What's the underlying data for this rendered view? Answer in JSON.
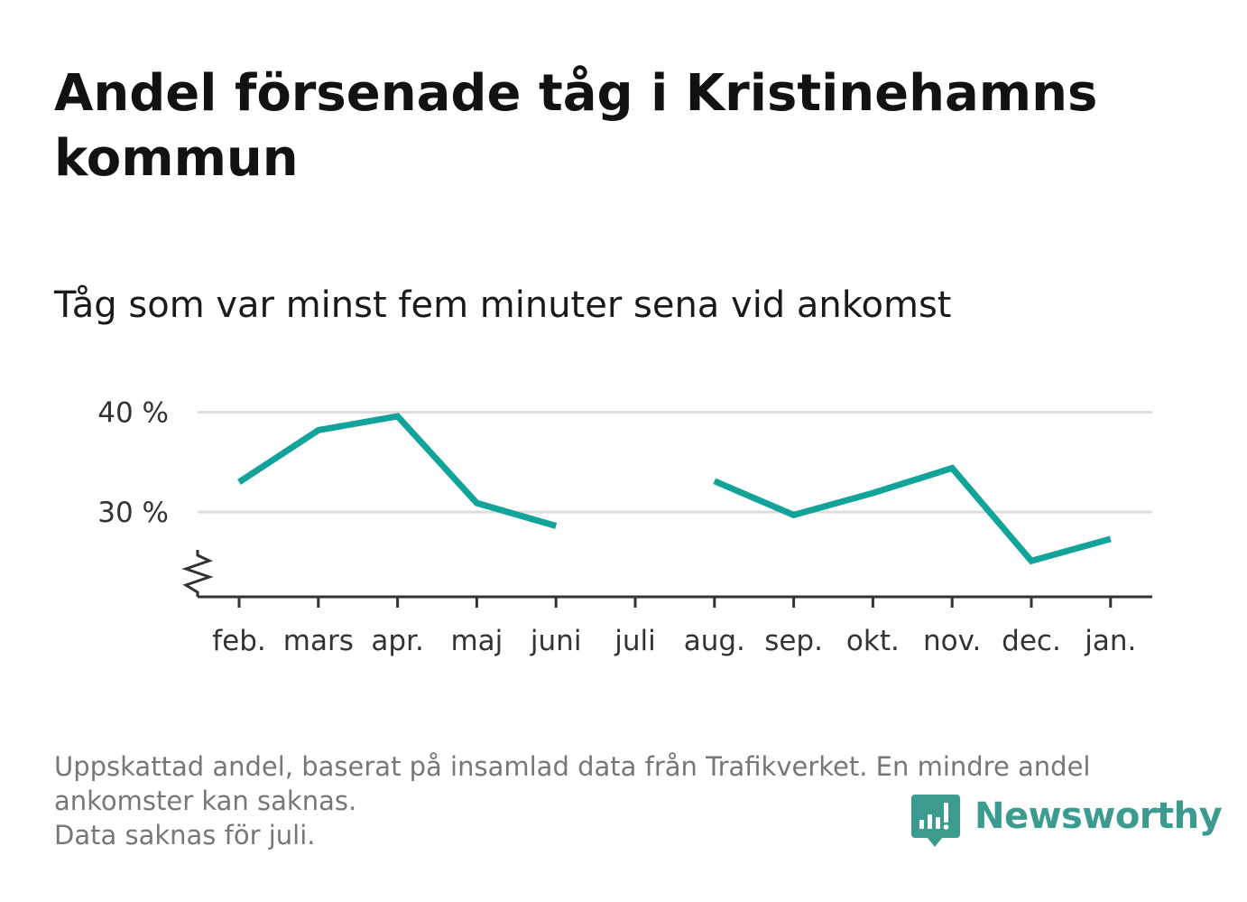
{
  "title": "Andel försenade tåg i Kristinehamns kommun",
  "subtitle": "Tåg som var minst fem minuter sena vid ankomst",
  "footnote": {
    "line1": "Uppskattad andel, baserat på insamlad data från Trafikverket. En mindre andel ankomster kan saknas.",
    "line2": "Data saknas för juli."
  },
  "brand": {
    "name": "Newsworthy",
    "icon": "newsworthy-logo-icon",
    "color": "#3b9b8f"
  },
  "colors": {
    "line": "#12a39a",
    "grid": "#dddddd",
    "axis": "#333333"
  },
  "chart_data": {
    "type": "line",
    "categories": [
      "feb.",
      "mars",
      "apr.",
      "maj",
      "juni",
      "juli",
      "aug.",
      "sep.",
      "okt.",
      "nov.",
      "dec.",
      "jan."
    ],
    "series": [
      {
        "values": [
          33.0,
          38.2,
          39.6,
          30.9,
          28.6,
          null,
          33.1,
          29.7,
          31.9,
          34.4,
          25.1,
          27.3
        ]
      }
    ],
    "yticks": [
      30,
      40
    ],
    "ytick_labels": [
      "30 %",
      "40 %"
    ],
    "ylim": [
      21.5,
      41.5
    ],
    "axis_break": true,
    "grid": true,
    "legend": "none",
    "xlabel": "",
    "ylabel": ""
  }
}
